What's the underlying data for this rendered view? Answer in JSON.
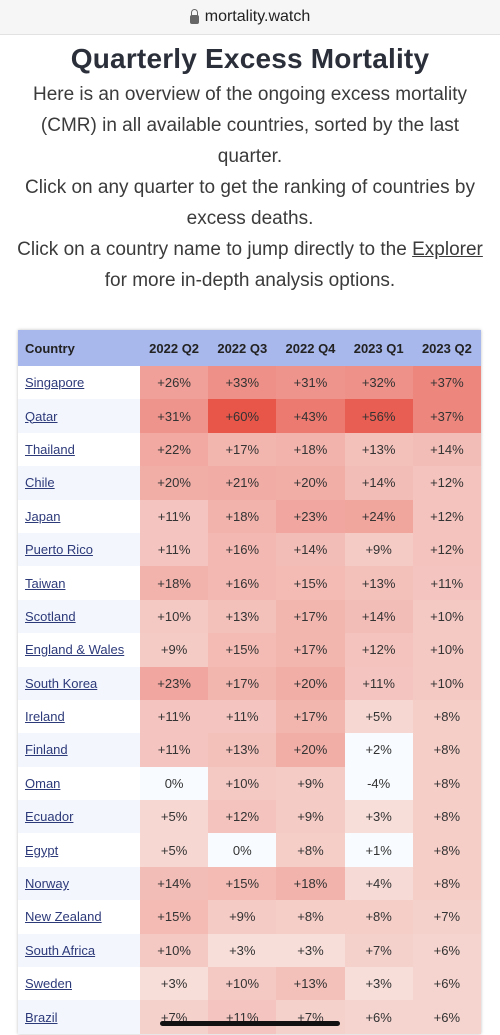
{
  "browser": {
    "url": "mortality.watch"
  },
  "page": {
    "title": "Quarterly Excess Mortality",
    "intro_p1": "Here is an overview of the ongoing excess mortality (CMR) in all available countries, sorted by the last quarter.",
    "intro_p2": "Click on any quarter to get the ranking of countries by excess deaths.",
    "intro_p3_before": "Click on a country name to jump directly to the ",
    "intro_p3_link": "Explorer",
    "intro_p3_after": " for more in-depth analysis options."
  },
  "table": {
    "country_header": "Country",
    "quarters": [
      "2022 Q2",
      "2022 Q3",
      "2022 Q4",
      "2023 Q1",
      "2023 Q2"
    ],
    "rows": [
      {
        "country": "Singapore",
        "values": [
          "+26%",
          "+33%",
          "+31%",
          "+32%",
          "+37%"
        ],
        "pct": [
          26,
          33,
          31,
          32,
          37
        ]
      },
      {
        "country": "Qatar",
        "values": [
          "+31%",
          "+60%",
          "+43%",
          "+56%",
          "+37%"
        ],
        "pct": [
          31,
          60,
          43,
          56,
          37
        ]
      },
      {
        "country": "Thailand",
        "values": [
          "+22%",
          "+17%",
          "+18%",
          "+13%",
          "+14%"
        ],
        "pct": [
          22,
          17,
          18,
          13,
          14
        ]
      },
      {
        "country": "Chile",
        "values": [
          "+20%",
          "+21%",
          "+20%",
          "+14%",
          "+12%"
        ],
        "pct": [
          20,
          21,
          20,
          14,
          12
        ]
      },
      {
        "country": "Japan",
        "values": [
          "+11%",
          "+18%",
          "+23%",
          "+24%",
          "+12%"
        ],
        "pct": [
          11,
          18,
          23,
          24,
          12
        ]
      },
      {
        "country": "Puerto Rico",
        "values": [
          "+11%",
          "+16%",
          "+14%",
          "+9%",
          "+12%"
        ],
        "pct": [
          11,
          16,
          14,
          9,
          12
        ]
      },
      {
        "country": "Taiwan",
        "values": [
          "+18%",
          "+16%",
          "+15%",
          "+13%",
          "+11%"
        ],
        "pct": [
          18,
          16,
          15,
          13,
          11
        ]
      },
      {
        "country": "Scotland",
        "values": [
          "+10%",
          "+13%",
          "+17%",
          "+14%",
          "+10%"
        ],
        "pct": [
          10,
          13,
          17,
          14,
          10
        ]
      },
      {
        "country": "England & Wales",
        "values": [
          "+9%",
          "+15%",
          "+17%",
          "+12%",
          "+10%"
        ],
        "pct": [
          9,
          15,
          17,
          12,
          10
        ]
      },
      {
        "country": "South Korea",
        "values": [
          "+23%",
          "+17%",
          "+20%",
          "+11%",
          "+10%"
        ],
        "pct": [
          23,
          17,
          20,
          11,
          10
        ]
      },
      {
        "country": "Ireland",
        "values": [
          "+11%",
          "+11%",
          "+17%",
          "+5%",
          "+8%"
        ],
        "pct": [
          11,
          11,
          17,
          5,
          8
        ]
      },
      {
        "country": "Finland",
        "values": [
          "+11%",
          "+13%",
          "+20%",
          "+2%",
          "+8%"
        ],
        "pct": [
          11,
          13,
          20,
          2,
          8
        ]
      },
      {
        "country": "Oman",
        "values": [
          "0%",
          "+10%",
          "+9%",
          "-4%",
          "+8%"
        ],
        "pct": [
          0,
          10,
          9,
          -4,
          8
        ]
      },
      {
        "country": "Ecuador",
        "values": [
          "+5%",
          "+12%",
          "+9%",
          "+3%",
          "+8%"
        ],
        "pct": [
          5,
          12,
          9,
          3,
          8
        ]
      },
      {
        "country": "Egypt",
        "values": [
          "+5%",
          "0%",
          "+8%",
          "+1%",
          "+8%"
        ],
        "pct": [
          5,
          0,
          8,
          1,
          8
        ]
      },
      {
        "country": "Norway",
        "values": [
          "+14%",
          "+15%",
          "+18%",
          "+4%",
          "+8%"
        ],
        "pct": [
          14,
          15,
          18,
          4,
          8
        ]
      },
      {
        "country": "New Zealand",
        "values": [
          "+15%",
          "+9%",
          "+8%",
          "+8%",
          "+7%"
        ],
        "pct": [
          15,
          9,
          8,
          8,
          7
        ]
      },
      {
        "country": "South Africa",
        "values": [
          "+10%",
          "+3%",
          "+3%",
          "+7%",
          "+6%"
        ],
        "pct": [
          10,
          3,
          3,
          7,
          6
        ]
      },
      {
        "country": "Sweden",
        "values": [
          "+3%",
          "+10%",
          "+13%",
          "+3%",
          "+6%"
        ],
        "pct": [
          3,
          10,
          13,
          3,
          6
        ]
      },
      {
        "country": "Brazil",
        "values": [
          "+7%",
          "+11%",
          "+7%",
          "+6%",
          "+6%"
        ],
        "pct": [
          7,
          11,
          7,
          6,
          6
        ]
      }
    ]
  },
  "colors": {
    "header_bg": "#a9b8ec",
    "heat_low": "#f7eeee",
    "heat_high": "#e8564a",
    "link": "#2d3a7a"
  }
}
